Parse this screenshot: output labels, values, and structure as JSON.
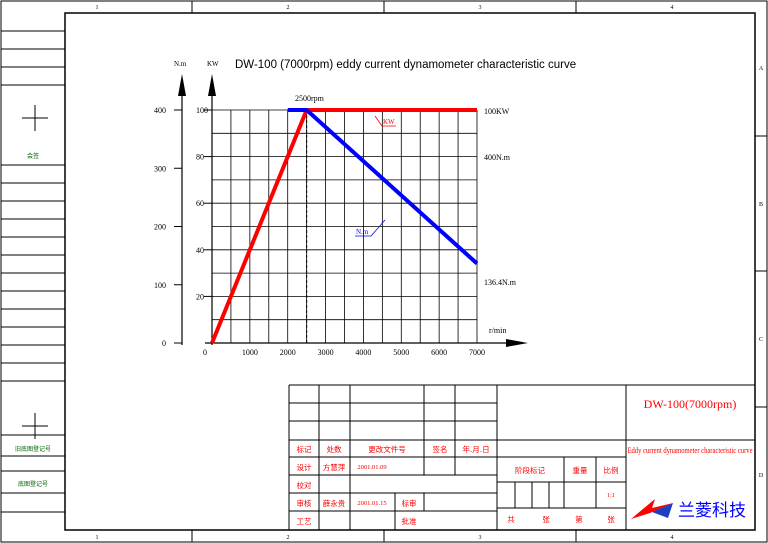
{
  "frame": {
    "column_numbers": [
      "1",
      "2",
      "3",
      "4"
    ],
    "row_letters": [
      "A",
      "B",
      "C",
      "D"
    ],
    "left_labels": [
      "会签",
      "旧底图登记号",
      "底图登记号"
    ]
  },
  "chart": {
    "title": "DW-100 (7000rpm)    eddy current dynamometer characteristic curve",
    "axis_left_unit": "N.m",
    "axis_mid_unit": "KW",
    "x_unit": "r/min",
    "annotation_rpm": "2500rpm",
    "label_100kw": "100KW",
    "label_400nm": "400N.m",
    "label_1364nm": "136.4N.m",
    "label_kw_curve": "KW",
    "label_nm_curve": "N.m",
    "x_ticks": [
      "0",
      "1000",
      "2000",
      "3000",
      "4000",
      "5000",
      "6000",
      "7000"
    ],
    "kw_ticks": [
      "20",
      "40",
      "60",
      "80",
      "100"
    ],
    "nm_ticks": [
      "0",
      "100",
      "200",
      "300",
      "400"
    ]
  },
  "chart_data": {
    "type": "line",
    "title": "DW-100 (7000rpm)    eddy current dynamometer characteristic curve",
    "xlabel": "r/min",
    "ylabel_left": "N.m",
    "ylabel_right": "KW",
    "xlim": [
      0,
      7000
    ],
    "ylim_kw": [
      0,
      100
    ],
    "ylim_nm": [
      0,
      400
    ],
    "grid": true,
    "series": [
      {
        "name": "KW",
        "color": "#ff0000",
        "axis": "KW",
        "x": [
          0,
          2500,
          7000
        ],
        "y": [
          0,
          100,
          100
        ]
      },
      {
        "name": "N.m",
        "color": "#0000ff",
        "axis": "N.m",
        "x": [
          2000,
          2500,
          7000
        ],
        "y": [
          400,
          400,
          136.4
        ]
      }
    ],
    "annotations": [
      "2500rpm",
      "100KW",
      "400N.m",
      "136.4N.m"
    ]
  },
  "title_block": {
    "model": "DW-100(7000rpm)",
    "description": "Eddy current dynamometer characteristic curve",
    "company": "兰菱科技",
    "logo_color": "#ff0000",
    "logo_color2": "#1a3fbf",
    "company_color": "#0000ff",
    "h_mark": "标记",
    "h_count": "处数",
    "h_docno": "更改文件号",
    "h_sign": "签名",
    "h_date": "年.月.日",
    "design": "设计",
    "designer": "方慧萍",
    "design_date": "2001.01.09",
    "check": "校对",
    "review": "审核",
    "reviewer": "薛永贵",
    "review_date": "2001.01.15",
    "standard": "标审",
    "process": "工艺",
    "approve": "批准",
    "stage": "阶段标记",
    "weight": "重量",
    "ratio": "比例",
    "ratio_value": "1:1",
    "total": "共",
    "sheets": "张",
    "sheet_no": "第",
    "sheet2": "张"
  }
}
